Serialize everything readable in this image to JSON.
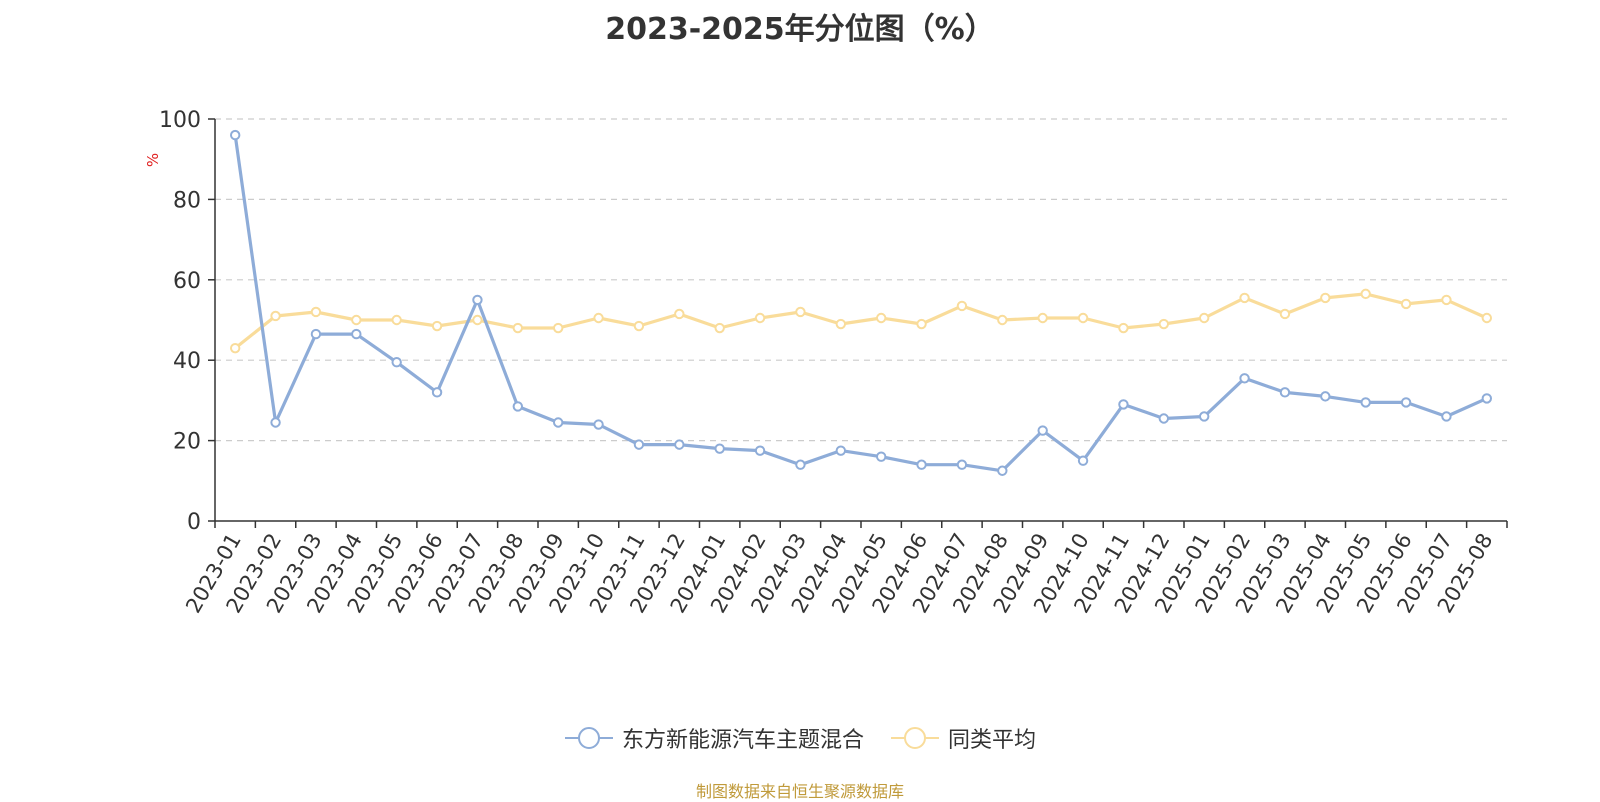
{
  "chart_data": {
    "type": "line",
    "title": "2023-2025年分位图（%）",
    "ylabel": "%",
    "xlabel": "",
    "ylim": [
      0,
      100
    ],
    "yticks": [
      0,
      20,
      40,
      60,
      80,
      100
    ],
    "grid": true,
    "legend_position": "bottom",
    "categories": [
      "2023-01",
      "2023-02",
      "2023-03",
      "2023-04",
      "2023-05",
      "2023-06",
      "2023-07",
      "2023-08",
      "2023-09",
      "2023-10",
      "2023-11",
      "2023-12",
      "2024-01",
      "2024-02",
      "2024-03",
      "2024-04",
      "2024-05",
      "2024-06",
      "2024-07",
      "2024-08",
      "2024-09",
      "2024-10",
      "2024-11",
      "2024-12",
      "2025-01",
      "2025-02",
      "2025-03",
      "2025-04",
      "2025-05",
      "2025-06",
      "2025-07",
      "2025-08"
    ],
    "series": [
      {
        "name": "东方新能源汽车主题混合",
        "color": "#8eacd8",
        "values": [
          96,
          24.5,
          46.5,
          46.5,
          39.5,
          32,
          55,
          28.5,
          24.5,
          24,
          19,
          19,
          18,
          17.5,
          14,
          17.5,
          16,
          14,
          14,
          12.5,
          22.5,
          15,
          29,
          25.5,
          26,
          35.5,
          32,
          31,
          29.5,
          29.5,
          26,
          30.5
        ]
      },
      {
        "name": "同类平均",
        "color": "#f9dc9a",
        "values": [
          43,
          51,
          52,
          50,
          50,
          48.5,
          50,
          48,
          48,
          50.5,
          48.5,
          51.5,
          48,
          50.5,
          52,
          49,
          50.5,
          49,
          53.5,
          50,
          50.5,
          50.5,
          48,
          49,
          50.5,
          55.5,
          51.5,
          55.5,
          56.5,
          54,
          55,
          50.5
        ]
      }
    ]
  },
  "source_note": "制图数据来自恒生聚源数据库"
}
